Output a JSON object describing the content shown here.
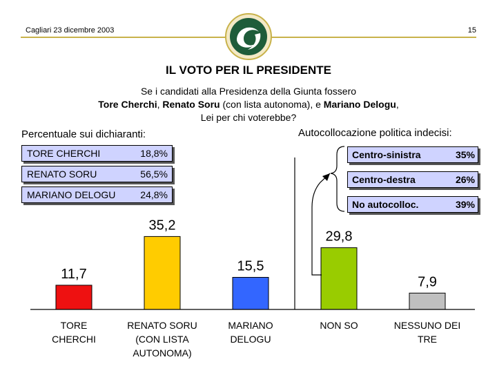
{
  "header": {
    "date": "Cagliari 23 dicembre 2003",
    "page": "15"
  },
  "title": "IL VOTO PER IL PRESIDENTE",
  "subtitle": {
    "line1": "Se i candidati alla Presidenza della Giunta fossero",
    "line2": {
      "c1": "Tore Cherchi",
      "s1": ", ",
      "c2": "Renato Soru",
      "s2": " (con lista autonoma), e ",
      "c3": "Mariano Delogu",
      "s3": ","
    },
    "line3": "Lei per chi voterebbe?"
  },
  "left_panel": {
    "heading": "Percentuale sui dichiaranti:",
    "items": [
      {
        "name": "TORE CHERCHI",
        "value": "18,8%"
      },
      {
        "name": "RENATO SORU",
        "value": "56,5%"
      },
      {
        "name": "MARIANO DELOGU",
        "value": "24,8%"
      }
    ]
  },
  "right_panel": {
    "heading": "Autocollocazione politica indecisi:",
    "items": [
      {
        "name": "Centro-sinistra",
        "value": "35%"
      },
      {
        "name": "Centro-destra",
        "value": "26%"
      },
      {
        "name": "No autocolloc.",
        "value": "39%"
      }
    ]
  },
  "colors": {
    "header_rule": "#c8b24a",
    "box_fill": "#cfd3ff",
    "logo_green": "#1e5c3a"
  },
  "chart_data": {
    "type": "bar",
    "categories": [
      [
        "TORE",
        "CHERCHI"
      ],
      [
        "RENATO SORU",
        "(CON LISTA",
        "AUTONOMA)"
      ],
      [
        "MARIANO",
        "DELOGU"
      ],
      [
        "NON SO"
      ],
      [
        "NESSUNO DEI",
        "TRE"
      ]
    ],
    "values": [
      11.7,
      35.2,
      15.5,
      29.8,
      7.9
    ],
    "value_labels": [
      "11,7",
      "35,2",
      "15,5",
      "29,8",
      "7,9"
    ],
    "colors": [
      "#ee1111",
      "#ffcc00",
      "#3366ff",
      "#99cc00",
      "#c0c0c0"
    ],
    "title": "",
    "xlabel": "",
    "ylabel": "",
    "ylim": [
      0,
      40
    ],
    "grid": false
  }
}
